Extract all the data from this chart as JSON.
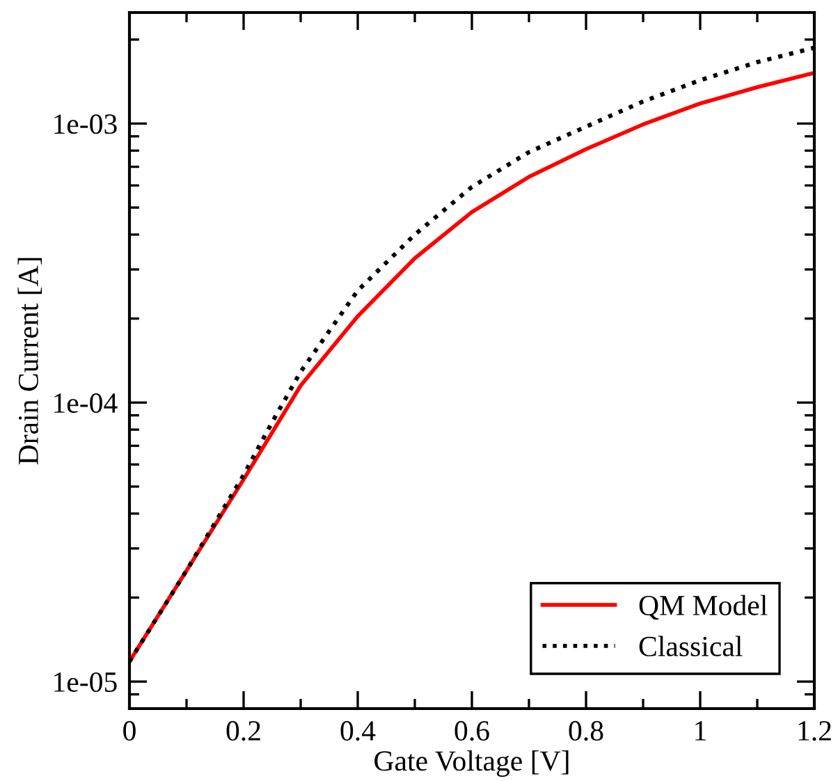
{
  "chart_data": {
    "type": "line",
    "xlabel": "Gate Voltage [V]",
    "ylabel": "Drain Current [A]",
    "log": "y",
    "legend": "bottom right",
    "grid": false,
    "xlim": [
      0,
      1.2
    ],
    "xticks": [
      0,
      0.2,
      0.4,
      0.6,
      0.8,
      1,
      1.2
    ],
    "ylim": [
      8e-06,
      0.0025
    ],
    "yticks": [
      {
        "value": 1e-05,
        "label": "1e-05"
      },
      {
        "value": 0.0001,
        "label": "1e-04"
      },
      {
        "value": 0.001,
        "label": "1e-03"
      }
    ],
    "series": [
      {
        "name": "QM Model",
        "color": "#ff0000",
        "line_style": "solid",
        "x": [
          0,
          0.1,
          0.2,
          0.3,
          0.4,
          0.5,
          0.6,
          0.7,
          0.8,
          0.9,
          1.0,
          1.1,
          1.2
        ],
        "values": [
          1.18e-05,
          2.5e-05,
          5.3e-05,
          0.000115,
          0.000204,
          0.000329,
          0.000482,
          0.000644,
          0.00081,
          0.000993,
          0.00118,
          0.00135,
          0.00152
        ]
      },
      {
        "name": "Classical",
        "color": "#000000",
        "line_style": "dotted",
        "x": [
          0,
          0.1,
          0.2,
          0.25,
          0.3,
          0.4,
          0.5,
          0.6,
          0.7,
          0.8,
          0.9,
          1.0,
          1.1,
          1.2
        ],
        "values": [
          1.18e-05,
          2.5e-05,
          5.5e-05,
          8.5e-05,
          0.000129,
          0.000252,
          0.0004,
          0.000593,
          0.00079,
          0.000975,
          0.0012,
          0.00143,
          0.00166,
          0.00187
        ]
      }
    ]
  }
}
